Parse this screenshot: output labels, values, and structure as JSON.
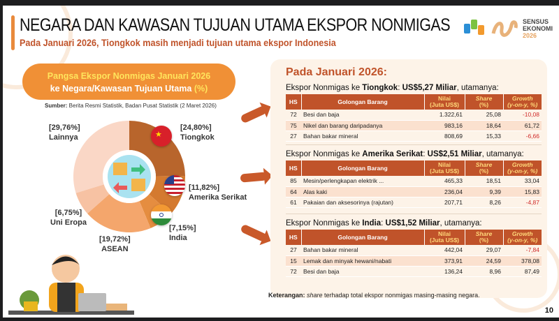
{
  "header": {
    "title": "NEGARA DAN KAWASAN TUJUAN UTAMA EKSPOR NONMIGAS",
    "subtitle": "Pada Januari 2026, Tiongkok masih menjadi tujuan utama ekspor Indonesia"
  },
  "logo": {
    "line1": "SENSUS",
    "line2": "EKONOMI",
    "line3": "2026"
  },
  "chart_pill": {
    "line1": "Pangsa Ekspor Nonmigas Januari 2026",
    "line2": "ke Negara/Kawasan Tujuan Utama ",
    "unit": "(%)"
  },
  "source": {
    "label": "Sumber:",
    "text": " Berita Resmi Statistik, Badan Pusat Statistik (2 Maret 2026)"
  },
  "chart_data": {
    "type": "pie",
    "title": "Pangsa Ekspor Nonmigas Januari 2026 ke Negara/Kawasan Tujuan Utama (%)",
    "categories": [
      "Tiongkok",
      "Amerika Serikat",
      "India",
      "ASEAN",
      "Uni Eropa",
      "Lainnya"
    ],
    "values": [
      24.8,
      11.82,
      7.15,
      19.72,
      6.75,
      29.76
    ],
    "labels": [
      "[24,80%]",
      "[11,82%]",
      "[7,15%]",
      "[19,72%]",
      "[6,75%]",
      "[29,76%]"
    ],
    "colors": [
      "#b8652c",
      "#d47a30",
      "#e58d40",
      "#f4a66c",
      "#f7c2a3",
      "#fad7c6"
    ]
  },
  "panel": {
    "title": "Pada Januari 2026:",
    "columns": {
      "hs": "HS",
      "item": "Golongan Barang",
      "value1": "Nilai",
      "value2": "(Juta US$)",
      "share1": "Share",
      "share2": "(%)",
      "growth1": "Growth",
      "growth2": "(y-on-y, %)"
    },
    "sections": [
      {
        "prefix": "Ekspor Nonmigas ke ",
        "country": "Tiongkok",
        "colon": ": ",
        "amount": "US$5,27 Miliar",
        "suffix": ", utamanya:",
        "rows": [
          {
            "hs": "72",
            "item": "Besi dan baja",
            "value": "1.322,61",
            "share": "25,08",
            "growth": "-10,08"
          },
          {
            "hs": "75",
            "item": "Nikel dan barang daripadanya",
            "value": "983,16",
            "share": "18,64",
            "growth": "61,72"
          },
          {
            "hs": "27",
            "item": "Bahan bakar mineral",
            "value": "808,69",
            "share": "15,33",
            "growth": "-6,66"
          }
        ]
      },
      {
        "prefix": "Ekspor Nonmigas ke ",
        "country": "Amerika Serikat",
        "colon": ": ",
        "amount": "US$2,51 Miliar",
        "suffix": ", utamanya:",
        "rows": [
          {
            "hs": "85",
            "item": "Mesin/perlengkapan elektrik ...",
            "value": "465,33",
            "share": "18,51",
            "growth": "33,04"
          },
          {
            "hs": "64",
            "item": "Alas kaki",
            "value": "236,04",
            "share": "9,39",
            "growth": "15,83"
          },
          {
            "hs": "61",
            "item": "Pakaian dan aksesorinya (rajutan)",
            "value": "207,71",
            "share": "8,26",
            "growth": "-4,87"
          }
        ]
      },
      {
        "prefix": "Ekspor Nonmigas ke ",
        "country": "India",
        "colon": ": ",
        "amount": "US$1,52 Miliar",
        "suffix": ", utamanya:",
        "rows": [
          {
            "hs": "27",
            "item": "Bahan bakar mineral",
            "value": "442,04",
            "share": "29,07",
            "growth": "-7,84"
          },
          {
            "hs": "15",
            "item": "Lemak dan minyak hewani/nabati",
            "value": "373,91",
            "share": "24,59",
            "growth": "378,08"
          },
          {
            "hs": "72",
            "item": "Besi dan baja",
            "value": "136,24",
            "share": "8,96",
            "growth": "87,49"
          }
        ]
      }
    ]
  },
  "note": {
    "label": "Keterangan:",
    "italic": " share",
    "text": " terhadap total ekspor nonmigas masing-masing negara."
  },
  "page_number": "10"
}
